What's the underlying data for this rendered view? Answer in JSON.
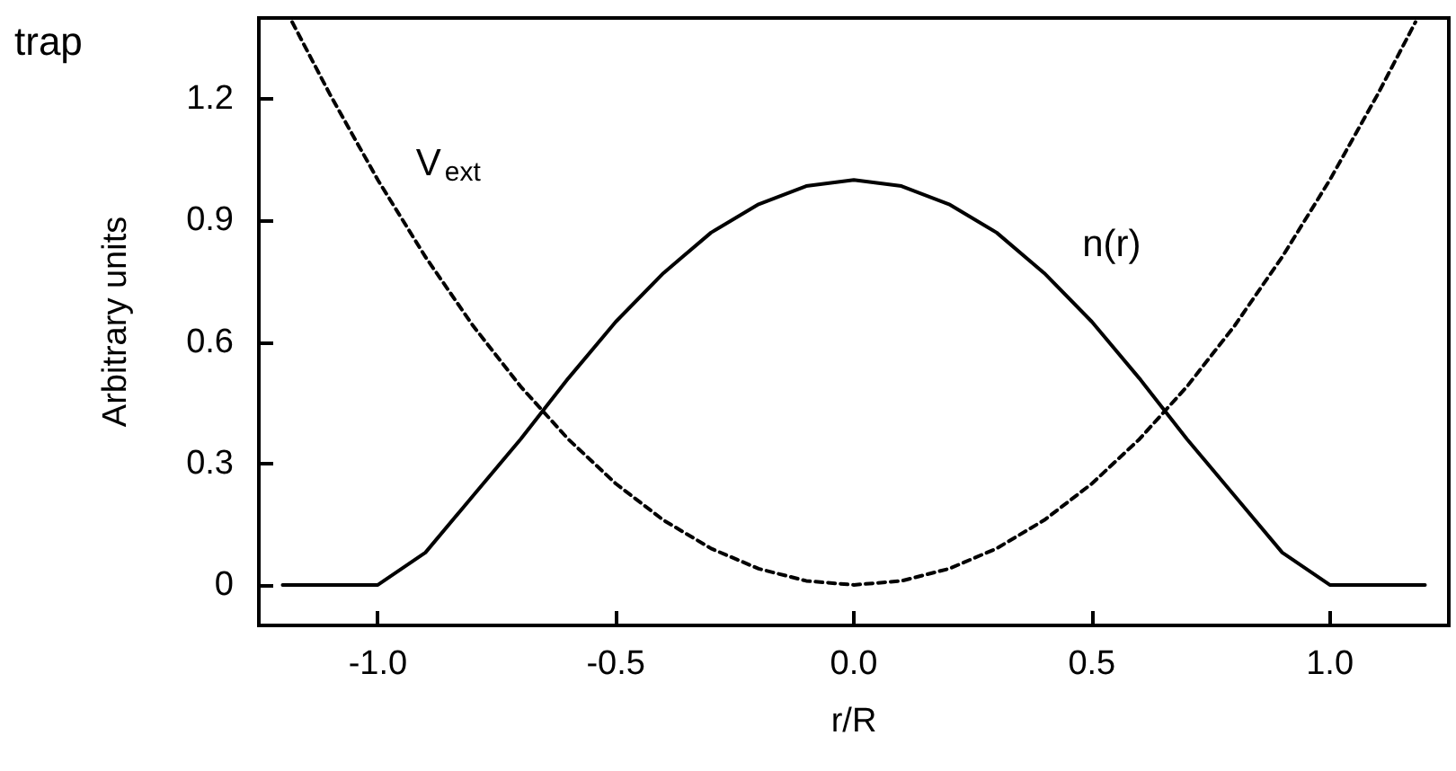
{
  "chart_data": {
    "type": "line",
    "xlabel": "r/R",
    "ylabel": "Arbitrary units",
    "annotations": [
      "trap"
    ],
    "xlim": [
      -1.25,
      1.25
    ],
    "ylim": [
      -0.1,
      1.4
    ],
    "xticks": [
      {
        "value": -1,
        "label": "-1.0"
      },
      {
        "value": -0.5,
        "label": "-0.5"
      },
      {
        "value": 0,
        "label": "0.0"
      },
      {
        "value": 0.5,
        "label": "0.5"
      },
      {
        "value": 1,
        "label": "1.0"
      }
    ],
    "yticks": [
      0,
      0.3,
      0.6,
      0.9,
      1.2
    ],
    "grid": false,
    "legend": false,
    "marker": "none",
    "series": [
      {
        "name": "n(r)",
        "color": "#000000",
        "line_style": "solid",
        "x": [
          -1.2,
          -1.1,
          -1.0,
          -0.9,
          -0.8,
          -0.7,
          -0.6,
          -0.5,
          -0.4,
          -0.3,
          -0.2,
          -0.1,
          0,
          0.1,
          0.2,
          0.3,
          0.4,
          0.5,
          0.6,
          0.7,
          0.8,
          0.9,
          1.0,
          1.1,
          1.2
        ],
        "values": [
          0,
          0,
          0,
          0.08,
          0.22,
          0.36,
          0.51,
          0.65,
          0.77,
          0.87,
          0.94,
          0.985,
          1,
          0.985,
          0.94,
          0.87,
          0.77,
          0.65,
          0.51,
          0.36,
          0.22,
          0.08,
          0,
          0,
          0
        ]
      },
      {
        "name": "V$_{ext}$",
        "color": "#000000",
        "line_style": "dashed",
        "x": [
          -1.18,
          -1.1,
          -1.0,
          -0.9,
          -0.8,
          -0.7,
          -0.6,
          -0.5,
          -0.4,
          -0.3,
          -0.2,
          -0.1,
          0,
          0.1,
          0.2,
          0.3,
          0.4,
          0.5,
          0.6,
          0.7,
          0.8,
          0.9,
          1.0,
          1.1,
          1.18
        ],
        "values": [
          1.39,
          1.21,
          1,
          0.81,
          0.64,
          0.49,
          0.36,
          0.25,
          0.16,
          0.09,
          0.04,
          0.01,
          0,
          0.01,
          0.04,
          0.09,
          0.16,
          0.25,
          0.36,
          0.49,
          0.64,
          0.81,
          1,
          1.21,
          1.39
        ]
      }
    ]
  }
}
